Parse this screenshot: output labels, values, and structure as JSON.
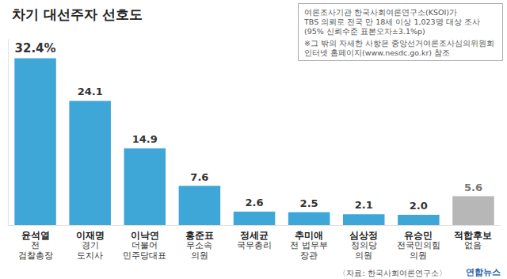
{
  "chart_data": {
    "type": "bar",
    "title": "차기 대선주자 선호도",
    "categories": [
      "윤석열\n전\n검찰총장",
      "이재명\n경기\n도지사",
      "이낙연\n더불어\n민주당대표",
      "홍준표\n무소속\n의원",
      "정세균\n국무총리",
      "추미애\n전 법무부\n장관",
      "심상정\n정의당\n의원",
      "유승민\n전국민의힘\n의원",
      "적합후보\n없음"
    ],
    "values": [
      32.4,
      24.1,
      14.9,
      7.6,
      2.6,
      2.5,
      2.1,
      2.0,
      5.6
    ],
    "value_labels": [
      "32.4%",
      "24.1",
      "14.9",
      "7.6",
      "2.6",
      "2.5",
      "2.1",
      "2.0",
      "5.6"
    ],
    "colors": [
      "#3fa6d8",
      "#3fa6d8",
      "#3fa6d8",
      "#3fa6d8",
      "#3fa6d8",
      "#3fa6d8",
      "#3fa6d8",
      "#3fa6d8",
      "#b7b7b7"
    ],
    "ylim": [
      0,
      36
    ],
    "grid": false,
    "data_labels": true,
    "tick_labels": "x",
    "annotations": [
      "여론조사기관 한국사회여론연구소(KSOI)가\nTBS 의뢰로 전국 만 18세 이상 1,023명 대상 조사\n(95% 신뢰수준 표본오차±3.1%p)",
      "※그 밖의 자세한 사항은 중앙선거여론조사심의위원회\n인터넷 홈페이지(www.nesdc.go.kr) 참조",
      "〈자료: 한국사회여론연구소〉",
      "연합뉴스"
    ]
  }
}
